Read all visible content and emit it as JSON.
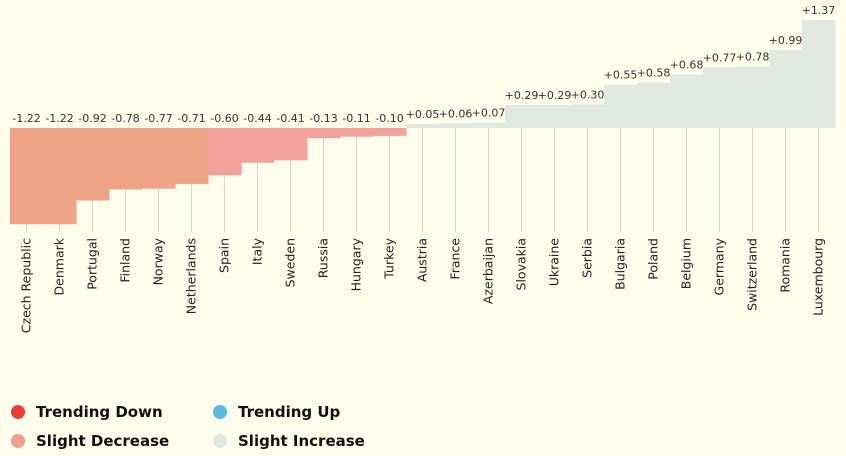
{
  "chart_data": {
    "type": "bar",
    "categories": [
      "Czech Republic",
      "Denmark",
      "Portugal",
      "Finland",
      "Norway",
      "Netherlands",
      "Spain",
      "Italy",
      "Sweden",
      "Russia",
      "Hungary",
      "Turkey",
      "Austria",
      "France",
      "Azerbaijan",
      "Slovakia",
      "Ukraine",
      "Serbia",
      "Bulgaria",
      "Poland",
      "Belgium",
      "Germany",
      "Switzerland",
      "Romania",
      "Luxembourg"
    ],
    "values": [
      -1.22,
      -1.22,
      -0.92,
      -0.78,
      -0.77,
      -0.71,
      -0.6,
      -0.44,
      -0.41,
      -0.13,
      -0.11,
      -0.1,
      0.05,
      0.06,
      0.07,
      0.29,
      0.29,
      0.3,
      0.55,
      0.58,
      0.68,
      0.77,
      0.78,
      0.99,
      1.37
    ],
    "value_labels": [
      "-1.22",
      "-1.22",
      "-0.92",
      "-0.78",
      "-0.77",
      "-0.71",
      "-0.60",
      "-0.44",
      "-0.41",
      "-0.13",
      "-0.11",
      "-0.10",
      "+0.05",
      "+0.06",
      "+0.07",
      "+0.29",
      "+0.29",
      "+0.30",
      "+0.55",
      "+0.58",
      "+0.68",
      "+0.77",
      "+0.78",
      "+0.99",
      "+1.37"
    ],
    "colors": [
      "#efa488",
      "#efa488",
      "#efa488",
      "#efa488",
      "#efa488",
      "#efa488",
      "#f2a19b",
      "#f2a19b",
      "#f2a19b",
      "#f2a19b",
      "#f2a19b",
      "#f2a19b",
      "#dfe9e2",
      "#dfe9e2",
      "#dfe9e2",
      "#dfe9e2",
      "#dfe9e2",
      "#dfe9e2",
      "#dfe9e2",
      "#dfe9e2",
      "#dfe9e2",
      "#dfe9e2",
      "#dfe9e2",
      "#dfe9e2",
      "#dfe9e2"
    ],
    "legend": [
      {
        "name": "Trending Down",
        "color": "#e8413b"
      },
      {
        "name": "Trending Up",
        "color": "#5cb9e2"
      },
      {
        "name": "Slight Decrease",
        "color": "#f0a090"
      },
      {
        "name": "Slight Increase",
        "color": "#dfe9e2"
      }
    ]
  }
}
